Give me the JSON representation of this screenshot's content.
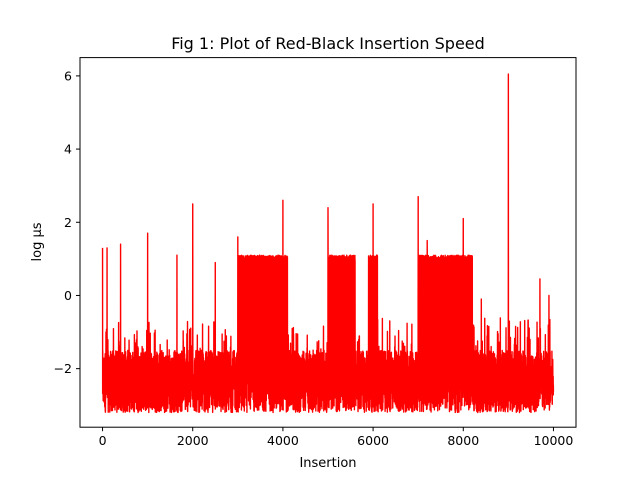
{
  "chart_data": {
    "type": "line",
    "title": "Fig 1: Plot of Red-Black Insertion Speed",
    "xlabel": "Insertion",
    "ylabel": "log µs",
    "xlim": [
      -500,
      10500
    ],
    "ylim": [
      -3.6,
      6.5
    ],
    "xticks": [
      0,
      2000,
      4000,
      6000,
      8000,
      10000
    ],
    "xtick_labels": [
      "0",
      "2000",
      "4000",
      "6000",
      "8000",
      "10000"
    ],
    "yticks": [
      -2,
      0,
      2,
      4,
      6
    ],
    "ytick_labels": [
      "−2",
      "0",
      "2",
      "4",
      "6"
    ],
    "grid": false,
    "legend": "none",
    "series": [
      {
        "color": "#ff0000",
        "n_points": 10000,
        "baseline_range": [
          -3.2,
          -1.5
        ],
        "elevated_segments": [
          {
            "x": [
              3000,
              4100
            ],
            "y_range": [
              -3.2,
              1.1
            ]
          },
          {
            "x": [
              5000,
              5600
            ],
            "y_range": [
              -3.2,
              1.1
            ]
          },
          {
            "x": [
              5900,
              6100
            ],
            "y_range": [
              -3.2,
              1.1
            ]
          },
          {
            "x": [
              7000,
              8200
            ],
            "y_range": [
              -3.2,
              1.1
            ]
          }
        ],
        "spikes": [
          {
            "x": 0,
            "y": 1.3
          },
          {
            "x": 100,
            "y": 1.3
          },
          {
            "x": 400,
            "y": 1.4
          },
          {
            "x": 1000,
            "y": 1.7
          },
          {
            "x": 1650,
            "y": 1.1
          },
          {
            "x": 2000,
            "y": 2.5
          },
          {
            "x": 2500,
            "y": 0.9
          },
          {
            "x": 3000,
            "y": 1.6
          },
          {
            "x": 4000,
            "y": 2.6
          },
          {
            "x": 5000,
            "y": 2.4
          },
          {
            "x": 6000,
            "y": 2.5
          },
          {
            "x": 7000,
            "y": 2.7
          },
          {
            "x": 7200,
            "y": 1.5
          },
          {
            "x": 8000,
            "y": 2.1
          },
          {
            "x": 8400,
            "y": -0.1
          },
          {
            "x": 9000,
            "y": 6.05
          },
          {
            "x": 9700,
            "y": 0.45
          },
          {
            "x": 9900,
            "y": 0.0
          }
        ]
      }
    ]
  }
}
